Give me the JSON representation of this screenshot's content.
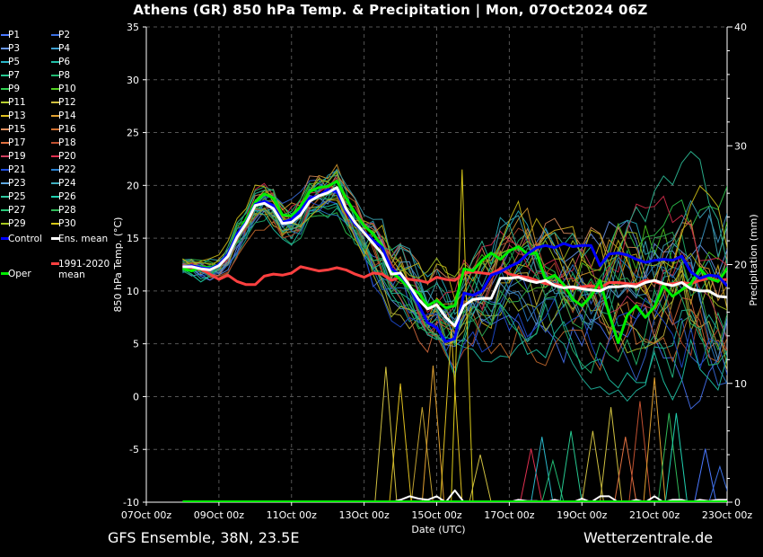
{
  "title": "Athens  (GR)  850 hPa Temp. & Precipitation | Mon, 07Oct2024 06Z",
  "footer": {
    "model": "GFS Ensemble, 38N, 23.5E",
    "source": "Wetterzentrale.de"
  },
  "colors": {
    "background": "#000000",
    "grid": "#555555",
    "axis": "#ffffff",
    "control": "#0000ff",
    "ens_mean": "#ffffff",
    "climate_mean": "#ff4040",
    "oper": "#00ee00"
  },
  "legend": [
    {
      "label": "P1",
      "color": "#4a78ff"
    },
    {
      "label": "P2",
      "color": "#3a6ee0"
    },
    {
      "label": "P3",
      "color": "#6a98f0"
    },
    {
      "label": "P4",
      "color": "#3fa0d0"
    },
    {
      "label": "P5",
      "color": "#2ab6c8"
    },
    {
      "label": "P6",
      "color": "#22c0a8"
    },
    {
      "label": "P7",
      "color": "#26c890"
    },
    {
      "label": "P8",
      "color": "#20b870"
    },
    {
      "label": "P9",
      "color": "#30d050"
    },
    {
      "label": "P10",
      "color": "#50d020"
    },
    {
      "label": "P11",
      "color": "#b8d030"
    },
    {
      "label": "P12",
      "color": "#d0c040"
    },
    {
      "label": "P13",
      "color": "#e0c020"
    },
    {
      "label": "P14",
      "color": "#e0a030"
    },
    {
      "label": "P15",
      "color": "#e09060"
    },
    {
      "label": "P16",
      "color": "#d07030"
    },
    {
      "label": "P17",
      "color": "#e07040"
    },
    {
      "label": "P18",
      "color": "#c05030"
    },
    {
      "label": "P19",
      "color": "#d04060"
    },
    {
      "label": "P20",
      "color": "#e03050"
    },
    {
      "label": "P21",
      "color": "#2050e0"
    },
    {
      "label": "P22",
      "color": "#2a80d0"
    },
    {
      "label": "P23",
      "color": "#60a8e0"
    },
    {
      "label": "P24",
      "color": "#40b0c0"
    },
    {
      "label": "P25",
      "color": "#30c8a0"
    },
    {
      "label": "P26",
      "color": "#20d0b0"
    },
    {
      "label": "P27",
      "color": "#28c878"
    },
    {
      "label": "P28",
      "color": "#30b858"
    },
    {
      "label": "P29",
      "color": "#a8c820"
    },
    {
      "label": "P30",
      "color": "#d8c818"
    },
    {
      "label": "Control",
      "color": "#0000ff"
    },
    {
      "label": "Ens. mean",
      "color": "#ffffff"
    },
    {
      "label": "Oper",
      "color": "#00ee00"
    },
    {
      "label": "1991-2020\nmean",
      "color": "#ff4040"
    }
  ],
  "chart_data": {
    "type": "line",
    "xlabel": "Date (UTC)",
    "ylabel": "850 hPa Temp. (°C)",
    "y2label": "Precipitation (mm)",
    "ylim": [
      -10,
      35
    ],
    "y2lim": [
      0,
      40
    ],
    "yticks": [
      "35",
      "30",
      "25",
      "20",
      "15",
      "10",
      "5",
      "0",
      "-5",
      "-10"
    ],
    "y2ticks": [
      "40",
      "30",
      "20",
      "10",
      "0"
    ],
    "xlim": [
      0,
      16
    ],
    "xticks": [
      {
        "day": 0,
        "label": "07Oct 00z"
      },
      {
        "day": 2,
        "label": "09Oct 00z"
      },
      {
        "day": 4,
        "label": "11Oct 00z"
      },
      {
        "day": 6,
        "label": "13Oct 00z"
      },
      {
        "day": 8,
        "label": "15Oct 00z"
      },
      {
        "day": 10,
        "label": "17Oct 00z"
      },
      {
        "day": 12,
        "label": "19Oct 00z"
      },
      {
        "day": 14,
        "label": "21Oct 00z"
      },
      {
        "day": 16,
        "label": "23Oct 00z"
      }
    ],
    "grid": true,
    "x_start_day": 1.0,
    "x_step_days": 0.25,
    "series": [
      {
        "name": "Control",
        "values": [
          12.3,
          12.4,
          12.2,
          12.1,
          12.5,
          13.5,
          15.4,
          16.5,
          18.2,
          18.5,
          18.1,
          16.5,
          16.8,
          17.6,
          18.8,
          19.0,
          19.6,
          19.4,
          17.6,
          16.3,
          15.6,
          14.8,
          14.1,
          12.1,
          11.5,
          10.5,
          8.7,
          7.0,
          6.5,
          5.2,
          5.5,
          9.8,
          9.6,
          10.0,
          11.5,
          11.8,
          12.3,
          12.7,
          13.5,
          14.1,
          14.3,
          14.1,
          14.5,
          14.2,
          14.3,
          14.3,
          12.4,
          13.5,
          13.6,
          13.4,
          13.0,
          12.7,
          12.9,
          13.0,
          12.9,
          13.3,
          11.8,
          11.2,
          11.5,
          11.4,
          10.5,
          10.4,
          10.3,
          9.9,
          9.1,
          8.5,
          8.5,
          8.7,
          9.0
        ]
      },
      {
        "name": "Ens. mean",
        "values": [
          12.3,
          12.3,
          12.1,
          12.0,
          12.4,
          13.3,
          15.1,
          16.4,
          18.1,
          18.3,
          17.8,
          16.4,
          16.5,
          17.2,
          18.5,
          19.0,
          19.3,
          19.8,
          17.8,
          16.5,
          15.5,
          14.5,
          13.5,
          11.6,
          11.7,
          10.5,
          9.2,
          8.3,
          8.7,
          7.5,
          6.7,
          8.6,
          9.2,
          9.3,
          9.3,
          11.2,
          11.2,
          11.3,
          11.0,
          10.8,
          11.0,
          10.5,
          10.3,
          10.4,
          10.2,
          10.1,
          10.0,
          10.4,
          10.4,
          10.5,
          10.4,
          10.8,
          11.0,
          10.7,
          10.5,
          10.8,
          10.2,
          10.0,
          10.0,
          9.5,
          9.4,
          8.9,
          9.2,
          9.1,
          9.0
        ]
      },
      {
        "name": "Oper",
        "values": [
          12.1,
          11.9,
          12.3,
          12.2,
          12.5,
          13.4,
          15.3,
          16.8,
          18.4,
          19.2,
          18.8,
          17.2,
          17.1,
          18.0,
          19.4,
          19.8,
          19.9,
          20.4,
          18.8,
          17.4,
          16.2,
          15.4,
          14.2,
          11.8,
          11.1,
          10.3,
          9.8,
          8.6,
          9.1,
          8.4,
          8.6,
          12.1,
          11.9,
          12.9,
          13.6,
          13.0,
          13.8,
          14.2,
          13.5,
          13.6,
          11.1,
          11.5,
          10.6,
          9.2,
          8.6,
          9.5,
          11.0,
          7.8,
          5.1,
          7.7,
          8.6,
          7.5,
          8.5,
          10.5,
          9.5,
          10.1,
          10.7,
          12.1,
          11.2,
          10.9,
          12.1,
          12.7,
          12.3,
          12.9,
          13.5,
          12.8
        ]
      },
      {
        "name": "1991-2020 mean",
        "values": [
          12.4,
          12.2,
          12.1,
          11.6,
          11.1,
          11.5,
          10.9,
          10.6,
          10.6,
          11.4,
          11.6,
          11.5,
          11.7,
          12.3,
          12.1,
          11.9,
          12.0,
          12.2,
          12.0,
          11.6,
          11.3,
          11.7,
          11.6,
          11.0,
          11.3,
          11.1,
          11.0,
          10.8,
          11.3,
          11.1,
          11.0,
          11.7,
          11.8,
          11.7,
          11.6,
          12.1,
          11.6,
          11.4,
          11.3,
          11.0,
          10.7,
          10.6,
          10.5,
          10.2,
          10.4,
          10.5,
          10.3,
          10.8,
          10.8,
          10.7,
          10.6,
          11.0,
          10.9,
          10.6,
          10.7,
          10.8,
          10.7,
          11.0,
          11.2,
          11.0,
          11.1,
          10.9,
          10.8,
          10.7,
          10.6
        ]
      },
      {
        "name": "Ens. mean precipitation",
        "axis": "y2",
        "values": [
          0,
          0,
          0,
          0,
          0,
          0,
          0,
          0,
          0,
          0,
          0,
          0,
          0,
          0,
          0,
          0,
          0,
          0,
          0,
          0,
          0,
          0,
          0,
          0,
          0.2,
          0.5,
          0.3,
          0.2,
          0.5,
          0,
          1.0,
          0,
          0,
          0,
          0,
          0,
          0,
          0.2,
          0.1,
          0.1,
          0,
          0.2,
          0,
          0,
          0.3,
          0,
          0.5,
          0.5,
          0,
          0,
          0.2,
          0,
          0.5,
          0,
          0.2,
          0.2,
          0,
          0.2,
          0.1,
          0.2,
          0.2,
          0,
          0.1
        ]
      }
    ],
    "members_envelope": {
      "upper": 21.5,
      "lower": 4.0
    }
  }
}
